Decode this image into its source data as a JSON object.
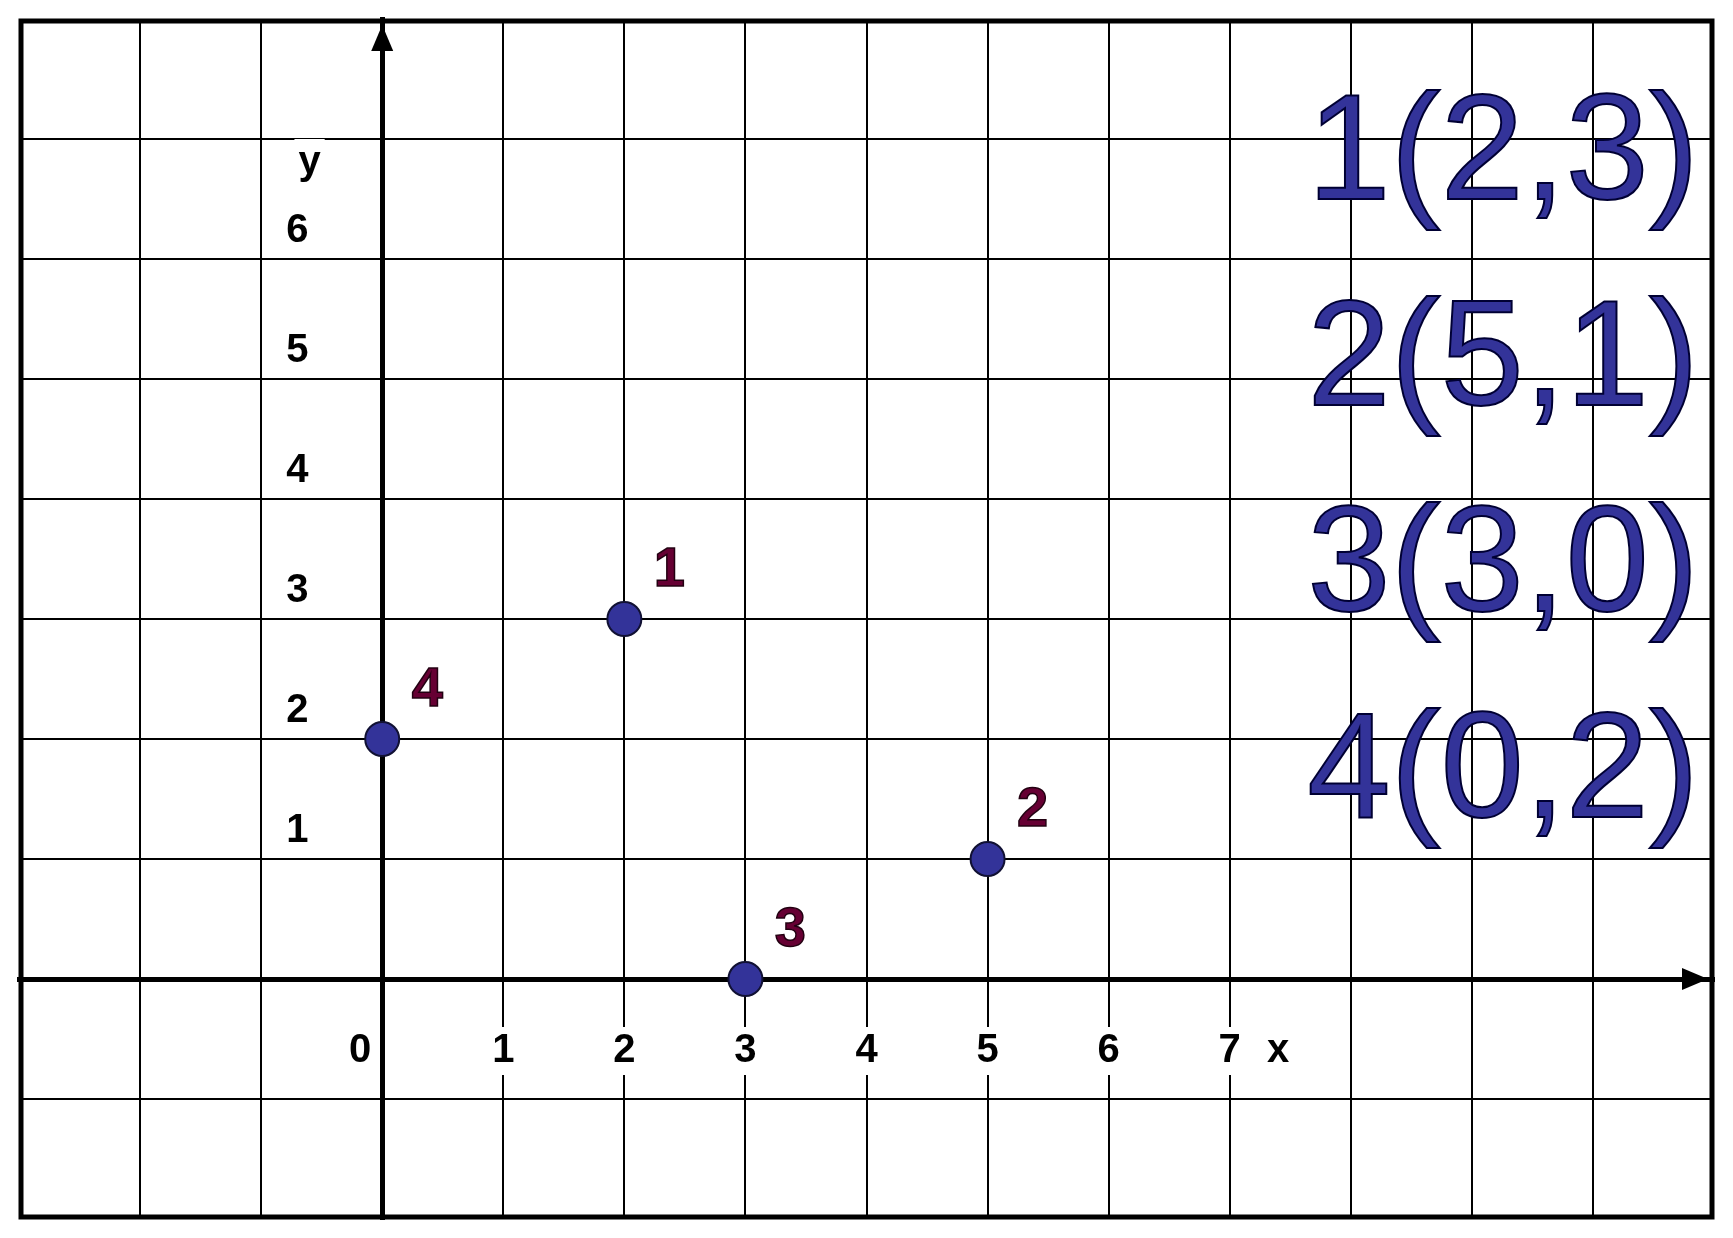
{
  "chart_data": {
    "type": "scatter",
    "xlabel": "x",
    "ylabel": "y",
    "x": [
      2,
      5,
      3,
      0
    ],
    "values": [
      3,
      1,
      0,
      2
    ],
    "color": "#333399",
    "marker": "circle",
    "grid": true,
    "legend": false,
    "xlim": [
      -3,
      11
    ],
    "ylim": [
      -2,
      8
    ],
    "xticks": [
      {
        "value": -2,
        "label": null
      },
      {
        "value": -1,
        "label": null
      },
      0,
      1,
      2,
      3,
      4,
      5,
      6,
      7,
      {
        "value": 8,
        "label": null
      },
      {
        "value": 9,
        "label": null
      },
      {
        "value": 10,
        "label": null
      }
    ],
    "yticks": [
      {
        "value": -1,
        "label": null
      },
      {
        "value": 0,
        "label": null
      },
      1,
      2,
      3,
      4,
      5,
      6,
      {
        "value": 7,
        "label": null
      }
    ],
    "annotations": [
      "1(2,3)",
      "2(5,1)",
      "3(3,0)",
      "4(0,2)",
      {
        "text": "1",
        "x": 2,
        "y": 3
      },
      {
        "text": "2",
        "x": 5,
        "y": 1
      },
      {
        "text": "3",
        "x": 3,
        "y": 0
      },
      {
        "text": "4",
        "x": 0,
        "y": 2
      }
    ]
  }
}
